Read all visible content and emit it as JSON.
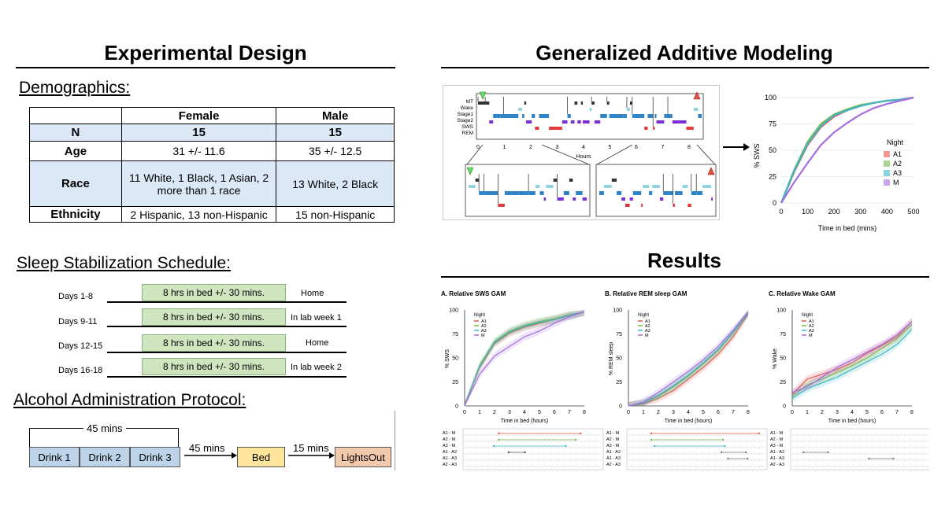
{
  "left": {
    "title": "Experimental Design",
    "demographics": {
      "heading": "Demographics:",
      "columns": [
        "",
        "Female",
        "Male"
      ],
      "rows": [
        {
          "label": "N",
          "female": "15",
          "male": "15"
        },
        {
          "label": "Age",
          "female": "31 +/- 11.6",
          "male": "35 +/- 12.5"
        },
        {
          "label": "Race",
          "female": "11 White, 1 Black, 1 Asian, 2 more than 1 race",
          "male": "13 White, 2 Black"
        },
        {
          "label": "Ethnicity",
          "female": "2 Hispanic, 13 non-Hispanic",
          "male": "15 non-Hispanic"
        }
      ]
    },
    "schedule": {
      "heading": "Sleep Stabilization Schedule:",
      "rows": [
        {
          "days": "Days 1-8",
          "box": "8 hrs in bed +/- 30 mins.",
          "loc": "Home"
        },
        {
          "days": "Days 9-11",
          "box": "8 hrs in bed +/- 30 mins.",
          "loc": "In lab week 1"
        },
        {
          "days": "Days 12-15",
          "box": "8 hrs in bed +/- 30 mins.",
          "loc": "Home"
        },
        {
          "days": "Days 16-18",
          "box": "8 hrs in bed +/- 30 mins.",
          "loc": "In lab week 2"
        }
      ]
    },
    "protocol": {
      "heading": "Alcohol Administration Protocol:",
      "span_label": "45 mins",
      "drinks": [
        "Drink 1",
        "Drink 2",
        "Drink 3"
      ],
      "arrow1": "45 mins",
      "bed": "Bed",
      "arrow2": "15 mins",
      "lights": "LightsOut",
      "colors": {
        "drink": "#bcd3ea",
        "bed": "#fde49a",
        "lights": "#f3c9ae"
      }
    }
  },
  "right": {
    "gam_title": "Generalized Additive Modeling",
    "results_title": "Results",
    "hypnogram": {
      "stages": [
        "MT",
        "Wake",
        "Stage1",
        "Stage2",
        "SWS",
        "REM"
      ],
      "hours": [
        "0",
        "1",
        "2",
        "3",
        "4",
        "5",
        "6",
        "7",
        "8"
      ],
      "xlabel": "Hours"
    },
    "gam_small": {
      "ylabel": "% SWS",
      "xlabel": "Time in bed (mins)",
      "yticks": [
        "100",
        "75",
        "50",
        "25",
        "0"
      ],
      "xticks": [
        "0",
        "100",
        "200",
        "300",
        "400",
        "500"
      ],
      "legend_title": "Night",
      "legend": [
        "A1",
        "A2",
        "A3",
        "M"
      ]
    },
    "panels": [
      {
        "title": "A. Relative SWS GAM",
        "ylabel": "% SWS",
        "yticks": [
          "100",
          "75",
          "50",
          "25",
          "0"
        ],
        "comparisons": [
          "A1 - M",
          "A2 - M",
          "A3 - M",
          "A1 - A2",
          "A1 - A3",
          "A2 - A3"
        ]
      },
      {
        "title": "B. Relative REM sleep GAM",
        "ylabel": "% REM sleep",
        "yticks": [
          "100",
          "75",
          "50",
          "25",
          "0"
        ],
        "comparisons": [
          "A1 - M",
          "A2 - M",
          "A3 - M",
          "A1 - A2",
          "A1 - A3",
          "A2 - A3"
        ]
      },
      {
        "title": "C. Relative Wake GAM",
        "ylabel": "% Wake",
        "yticks": [
          "100",
          "75",
          "50",
          "25",
          "0"
        ],
        "comparisons": [
          "A1 - M",
          "A2 - M",
          "A3 - M",
          "A1 - A2",
          "A1 - A3",
          "A2 - A3"
        ]
      }
    ],
    "panel_xlabel": "Time in bed (hours)",
    "panel_xticks": [
      "0",
      "1",
      "2",
      "3",
      "4",
      "5",
      "6",
      "7",
      "8"
    ],
    "panel_legend_title": "Night",
    "panel_legend": [
      "A1",
      "A2",
      "A3",
      "M"
    ],
    "series_colors": {
      "A1": "#e8554e",
      "A2": "#79b84a",
      "A3": "#3db7c4",
      "M": "#a46de0"
    }
  },
  "chart_data": [
    {
      "type": "line",
      "x": [
        0,
        50,
        100,
        150,
        200,
        250,
        300,
        350,
        400,
        450,
        500
      ],
      "xlabel": "Time in bed (mins)",
      "ylabel": "% SWS",
      "ylim": [
        0,
        100
      ],
      "xlim": [
        0,
        500
      ],
      "series": [
        {
          "name": "A1",
          "values": [
            0,
            30,
            55,
            72,
            82,
            88,
            92,
            95,
            97,
            98,
            100
          ]
        },
        {
          "name": "A2",
          "values": [
            0,
            32,
            58,
            75,
            84,
            89,
            93,
            95,
            97,
            98,
            100
          ]
        },
        {
          "name": "A3",
          "values": [
            0,
            31,
            56,
            73,
            83,
            88,
            92,
            95,
            97,
            98,
            100
          ]
        },
        {
          "name": "M",
          "values": [
            0,
            20,
            38,
            55,
            67,
            76,
            84,
            90,
            94,
            97,
            100
          ]
        }
      ]
    },
    {
      "type": "line",
      "x": [
        0,
        1,
        2,
        3,
        4,
        5,
        6,
        7,
        8
      ],
      "xlabel": "Time in bed (hours)",
      "ylabel": "% SWS",
      "ylim": [
        0,
        100
      ],
      "series": [
        {
          "name": "A1",
          "values": [
            0,
            40,
            65,
            76,
            82,
            86,
            90,
            94,
            98
          ]
        },
        {
          "name": "A2",
          "values": [
            0,
            42,
            67,
            78,
            84,
            88,
            91,
            95,
            98
          ]
        },
        {
          "name": "A3",
          "values": [
            0,
            41,
            66,
            77,
            83,
            87,
            90,
            94,
            98
          ]
        },
        {
          "name": "M",
          "values": [
            0,
            33,
            52,
            62,
            72,
            78,
            86,
            93,
            98
          ]
        }
      ]
    },
    {
      "type": "line",
      "x": [
        0,
        1,
        2,
        3,
        4,
        5,
        6,
        7,
        8
      ],
      "xlabel": "Time in bed (hours)",
      "ylabel": "% REM sleep",
      "ylim": [
        0,
        100
      ],
      "series": [
        {
          "name": "A1",
          "values": [
            0,
            2,
            8,
            16,
            28,
            40,
            54,
            72,
            96
          ]
        },
        {
          "name": "A2",
          "values": [
            0,
            3,
            10,
            20,
            31,
            44,
            58,
            76,
            97
          ]
        },
        {
          "name": "A3",
          "values": [
            0,
            3,
            11,
            21,
            32,
            45,
            59,
            77,
            97
          ]
        },
        {
          "name": "M",
          "values": [
            0,
            4,
            14,
            25,
            36,
            48,
            62,
            79,
            98
          ]
        }
      ]
    },
    {
      "type": "line",
      "x": [
        0,
        1,
        2,
        3,
        4,
        5,
        6,
        7,
        8
      ],
      "xlabel": "Time in bed (hours)",
      "ylabel": "% Wake",
      "ylim": [
        0,
        100
      ],
      "series": [
        {
          "name": "A1",
          "values": [
            12,
            28,
            33,
            38,
            45,
            55,
            63,
            72,
            88
          ]
        },
        {
          "name": "A2",
          "values": [
            10,
            22,
            28,
            35,
            42,
            50,
            60,
            70,
            85
          ]
        },
        {
          "name": "A3",
          "values": [
            8,
            18,
            24,
            30,
            38,
            46,
            54,
            64,
            80
          ]
        },
        {
          "name": "M",
          "values": [
            14,
            20,
            30,
            40,
            48,
            56,
            64,
            74,
            88
          ]
        }
      ]
    }
  ]
}
